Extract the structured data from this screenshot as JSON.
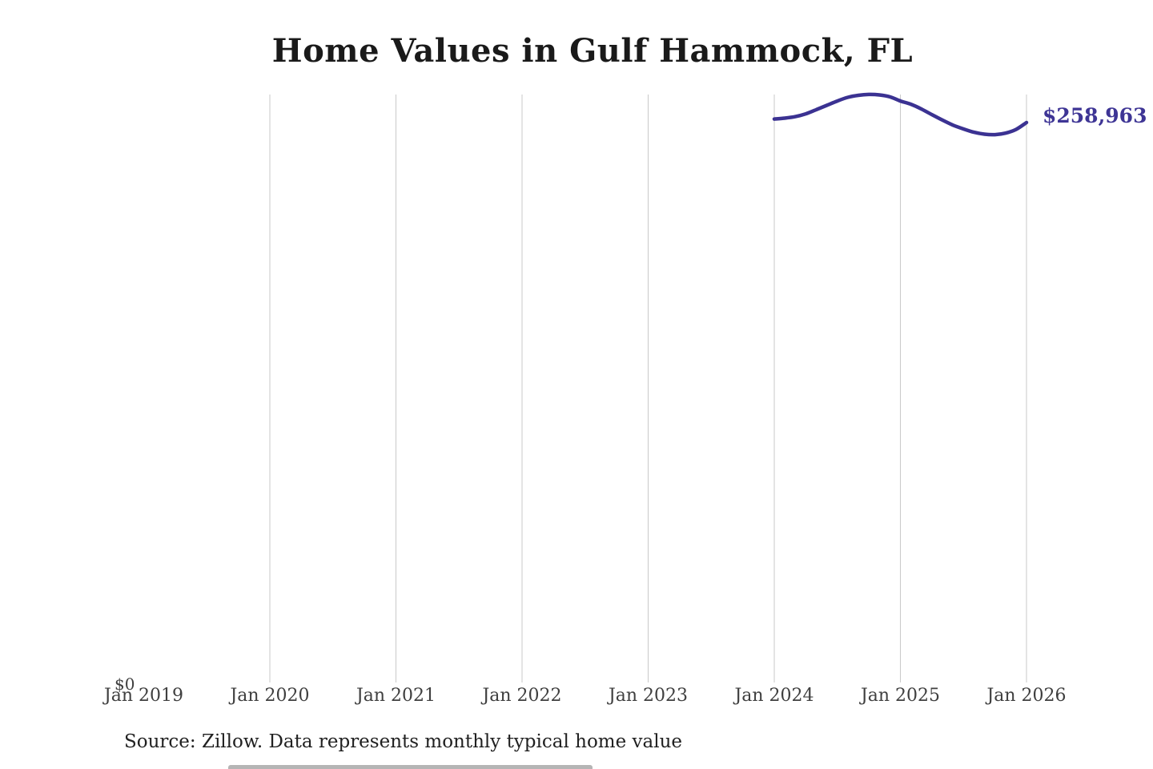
{
  "title": "Home Values in Gulf Hammock, FL",
  "y_axis": {
    "zero_label": "$0"
  },
  "x_axis": {
    "tick_labels": [
      "Jan 2019",
      "Jan 2020",
      "Jan 2021",
      "Jan 2022",
      "Jan 2023",
      "Jan 2024",
      "Jan 2025",
      "Jan 2026"
    ]
  },
  "annotation": {
    "latest_value_label": "$258,963"
  },
  "footer": {
    "source_text": "Source: Zillow. Data represents monthly typical home value"
  },
  "colors": {
    "line": "#3b3292",
    "annotation_text": "#3e3595",
    "gridline": "#c9c9c9",
    "title_text": "#1a1a1a",
    "tick_text": "#3f3f3f"
  },
  "chart_data": {
    "type": "line",
    "title": "Home Values in Gulf Hammock, FL",
    "xlabel": "",
    "ylabel": "",
    "x": [
      "Jan 2024",
      "Feb 2024",
      "Mar 2024",
      "Apr 2024",
      "May 2024",
      "Jun 2024",
      "Jul 2024",
      "Aug 2024",
      "Sep 2024",
      "Oct 2024",
      "Nov 2024",
      "Dec 2024",
      "Jan 2025",
      "Feb 2025",
      "Mar 2025",
      "Apr 2025",
      "May 2025",
      "Jun 2025",
      "Jul 2025",
      "Aug 2025",
      "Sep 2025",
      "Oct 2025",
      "Nov 2025",
      "Dec 2025",
      "Jan 2026"
    ],
    "series": [
      {
        "name": "Typical home value",
        "values": [
          260600,
          261000,
          261700,
          263000,
          264900,
          266900,
          268900,
          270600,
          271500,
          271900,
          271700,
          270800,
          268900,
          267400,
          265200,
          262600,
          260100,
          257800,
          256000,
          254500,
          253600,
          253400,
          254100,
          255800,
          258963
        ]
      }
    ],
    "last_point_label": "$258,963",
    "ylim": [
      0,
      290000
    ],
    "x_axis_range": [
      "Jan 2019",
      "Jan 2026"
    ],
    "grid": "vertical gridlines at each January (2020-2026), no horizontal gridlines",
    "legend": "none",
    "source": "Source: Zillow. Data represents monthly typical home value"
  }
}
